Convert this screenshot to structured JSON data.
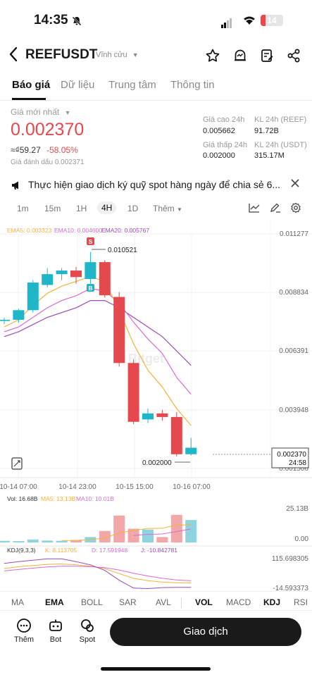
{
  "status": {
    "time": "14:35",
    "battery": "14"
  },
  "header": {
    "pair": "REEFUSDT",
    "contract_type": "Vĩnh cửu"
  },
  "tabs": [
    "Báo giá",
    "Dữ liệu",
    "Trung tâm",
    "Thông tin"
  ],
  "price_panel": {
    "latest_label": "Giá mới nhất",
    "price": "0.002370",
    "fiat": "≈₫59.27",
    "change": "-58.05%",
    "mark_label": "Giá đánh dấu",
    "mark_value": "0.002371",
    "high_label": "Giá cao 24h",
    "high_value": "0.005662",
    "low_label": "Giá thấp 24h",
    "low_value": "0.002000",
    "vol_reef_label": "KL 24h (REEF)",
    "vol_reef_value": "91.72B",
    "vol_usdt_label": "KL 24h (USDT)",
    "vol_usdt_value": "315.17M"
  },
  "notice": {
    "text": "Thực hiện giao dịch ký quỹ spot hàng ngày để chia sẻ 6..."
  },
  "intervals": {
    "items": [
      "1m",
      "15m",
      "1H",
      "4H",
      "1D"
    ],
    "more": "Thêm"
  },
  "colors": {
    "up": "#1fb6c9",
    "down": "#e5484d",
    "ema5": "#f0b43c",
    "ema10": "#d86bd2",
    "ema20": "#9b4bb8",
    "vol_up": "#8fd3de",
    "vol_down": "#f2a7a9"
  },
  "ema": {
    "ema5": "EMA5: 0.003323",
    "ema10": "EMA10: 0.004600",
    "ema20": "EMA20: 0.005767"
  },
  "y_axis": [
    "0.011277",
    "0.008834",
    "0.006391",
    "0.003948",
    "0.001506"
  ],
  "current_price_tag": {
    "price": "0.002370",
    "countdown": "24:58"
  },
  "annotations": {
    "high": "0.010521",
    "low": "0.002000",
    "sell_marker": "S",
    "buy_marker": "B"
  },
  "x_axis": [
    "10-14 07:00",
    "10-14 23:00",
    "10-15 15:00",
    "10-16 07:00"
  ],
  "watermark": "Bitget",
  "chart_data": [
    {
      "type": "candlestick",
      "candles": [
        {
          "o": 0.00765,
          "h": 0.00778,
          "l": 0.00752,
          "c": 0.0077
        },
        {
          "o": 0.0077,
          "h": 0.00815,
          "l": 0.00758,
          "c": 0.0081
        },
        {
          "o": 0.0081,
          "h": 0.00935,
          "l": 0.008,
          "c": 0.00925
        },
        {
          "o": 0.00915,
          "h": 0.00985,
          "l": 0.00905,
          "c": 0.0096
        },
        {
          "o": 0.0096,
          "h": 0.00985,
          "l": 0.00935,
          "c": 0.00975
        },
        {
          "o": 0.00975,
          "h": 0.0099,
          "l": 0.0092,
          "c": 0.00948
        },
        {
          "o": 0.0094,
          "h": 0.010521,
          "l": 0.0092,
          "c": 0.0101
        },
        {
          "o": 0.0101,
          "h": 0.01018,
          "l": 0.00862,
          "c": 0.00872
        },
        {
          "o": 0.00865,
          "h": 0.00885,
          "l": 0.00575,
          "c": 0.0059
        },
        {
          "o": 0.0059,
          "h": 0.00605,
          "l": 0.00335,
          "c": 0.00345
        },
        {
          "o": 0.00355,
          "h": 0.004,
          "l": 0.0034,
          "c": 0.0038
        },
        {
          "o": 0.0038,
          "h": 0.00395,
          "l": 0.0035,
          "c": 0.00365
        },
        {
          "o": 0.00365,
          "h": 0.00385,
          "l": 0.002,
          "c": 0.0021
        },
        {
          "o": 0.0021,
          "h": 0.00278,
          "l": 0.00205,
          "c": 0.00237
        }
      ],
      "ema5": [
        0.0074,
        0.0077,
        0.0083,
        0.0088,
        0.0091,
        0.0093,
        0.0095,
        0.0093,
        0.0081,
        0.0067,
        0.0056,
        0.0049,
        0.004,
        0.0033
      ],
      "ema10": [
        0.0072,
        0.0074,
        0.0078,
        0.0082,
        0.0085,
        0.0087,
        0.009,
        0.0089,
        0.0084,
        0.0076,
        0.0069,
        0.0063,
        0.0053,
        0.0046
      ],
      "ema20": [
        0.007,
        0.0072,
        0.0075,
        0.0078,
        0.008,
        0.0082,
        0.0085,
        0.0085,
        0.0082,
        0.0078,
        0.0074,
        0.007,
        0.0064,
        0.0058
      ],
      "ylim": [
        0.001506,
        0.011277
      ]
    },
    {
      "type": "bar",
      "title": "Vol: 16.68B",
      "series": [
        {
          "name": "MA5: 13.13B"
        },
        {
          "name": "MA10: 10.01B"
        }
      ],
      "values": [
        1.2,
        1.0,
        2.2,
        1.4,
        1.2,
        1.8,
        4.0,
        8.5,
        20.0,
        10.2,
        9.6,
        4.0,
        20.5,
        16.68
      ],
      "ma5": [
        null,
        null,
        null,
        null,
        1.4,
        1.5,
        2.1,
        3.3,
        7.1,
        8.9,
        10.4,
        10.5,
        12.9,
        13.13
      ],
      "ma10": [
        null,
        null,
        null,
        null,
        null,
        null,
        null,
        null,
        null,
        5.2,
        6.0,
        6.3,
        8.1,
        10.01
      ],
      "y_ticks": [
        "25.13B",
        "0.00"
      ]
    },
    {
      "type": "line",
      "title": "KDJ(9,3,3)",
      "series": [
        {
          "name": "K: 8.113705",
          "values": [
            70,
            78,
            83,
            88,
            90,
            86,
            80,
            70,
            48,
            28,
            18,
            12,
            9,
            8.1
          ]
        },
        {
          "name": "D: 17.591948",
          "values": [
            60,
            66,
            72,
            77,
            80,
            80,
            78,
            74,
            64,
            50,
            38,
            28,
            21,
            17.6
          ]
        },
        {
          "name": "J: -10.842781",
          "values": [
            92,
            100,
            106,
            112,
            112,
            100,
            86,
            62,
            20,
            -14,
            -16,
            -12,
            -11,
            -10.8
          ]
        }
      ],
      "y_ticks": [
        "115.698305",
        "-14.593373"
      ]
    }
  ],
  "indicators": {
    "main": [
      "MA",
      "EMA",
      "BOLL",
      "SAR",
      "AVL"
    ],
    "sub": [
      "VOL",
      "MACD",
      "KDJ",
      "RSI"
    ]
  },
  "bottom_nav": {
    "more": "Thêm",
    "bot": "Bot",
    "spot": "Spot",
    "trade": "Giao dịch"
  }
}
